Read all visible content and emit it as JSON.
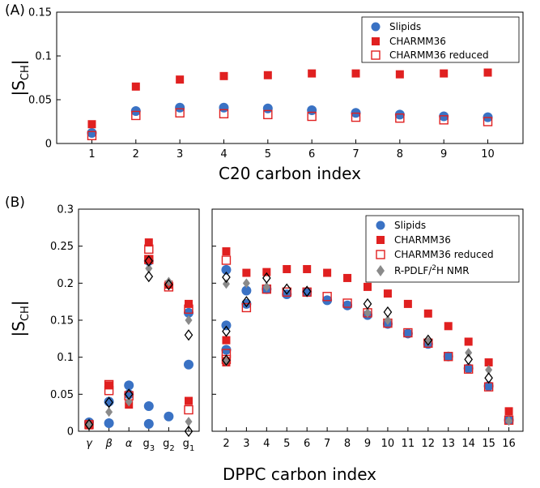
{
  "colors": {
    "slipids": "#3a72c4",
    "charmm": "#e02020",
    "nmr_gray": "#8a8a8a",
    "nmr_open": "#000000"
  },
  "chart_data": [
    {
      "panel": "(A)",
      "type": "scatter",
      "xlabel": "C20 carbon index",
      "ylabel": "|S",
      "ylabel_sub": "CH",
      "ylabel_end": "|",
      "xlim": [
        0.2,
        10.8
      ],
      "ylim": [
        0,
        0.15
      ],
      "xticks": [
        "1",
        "2",
        "3",
        "4",
        "5",
        "6",
        "7",
        "8",
        "9",
        "10"
      ],
      "yticks": [
        "0",
        "0.05",
        "0.1",
        "0.15"
      ],
      "legend_position": "top-right",
      "series": [
        {
          "name": "Slipids",
          "marker": "circle",
          "x": [
            1,
            2,
            3,
            4,
            5,
            6,
            7,
            8,
            9,
            10
          ],
          "y": [
            0.012,
            0.037,
            0.041,
            0.041,
            0.04,
            0.038,
            0.035,
            0.033,
            0.031,
            0.03
          ]
        },
        {
          "name": "CHARMM36",
          "marker": "square",
          "x": [
            1,
            2,
            3,
            4,
            5,
            6,
            7,
            8,
            9,
            10
          ],
          "y": [
            0.022,
            0.065,
            0.073,
            0.077,
            0.078,
            0.08,
            0.08,
            0.079,
            0.08,
            0.081
          ]
        },
        {
          "name": "CHARMM36 reduced",
          "marker": "open-square",
          "x": [
            1,
            2,
            3,
            4,
            5,
            6,
            7,
            8,
            9,
            10
          ],
          "y": [
            0.009,
            0.032,
            0.035,
            0.034,
            0.033,
            0.031,
            0.03,
            0.029,
            0.027,
            0.025
          ]
        }
      ]
    },
    {
      "panel": "(B)",
      "type": "scatter",
      "xlabel": "DPPC carbon index",
      "ylabel": "|S",
      "ylabel_sub": "CH",
      "ylabel_end": "|",
      "ylim": [
        0,
        0.3
      ],
      "yticks": [
        "0",
        "0.05",
        "0.1",
        "0.15",
        "0.2",
        "0.25",
        "0.3"
      ],
      "headgroup_ticks": [
        {
          "label": "γ",
          "sub": ""
        },
        {
          "label": "β",
          "sub": ""
        },
        {
          "label": "α",
          "sub": ""
        },
        {
          "label": "g",
          "sub": "3"
        },
        {
          "label": "g",
          "sub": "2"
        },
        {
          "label": "g",
          "sub": "1"
        }
      ],
      "tail_xlim": [
        1.3,
        16.7
      ],
      "tail_xticks": [
        "2",
        "3",
        "4",
        "5",
        "6",
        "7",
        "8",
        "9",
        "10",
        "11",
        "12",
        "13",
        "14",
        "15",
        "16"
      ],
      "legend_position": "top-right",
      "legend_last_label": {
        "a": "R-PDLF/",
        "sup": "2",
        "b": "H NMR"
      },
      "legend": [
        "Slipids",
        "CHARMM36",
        "CHARMM36 reduced"
      ],
      "headgroup_series": [
        {
          "name": "Slipids",
          "marker": "circle",
          "x": [
            1,
            2,
            2,
            3,
            3,
            4,
            4,
            4,
            5,
            6,
            6
          ],
          "y": [
            0.012,
            0.011,
            0.04,
            0.05,
            0.062,
            0.01,
            0.034,
            0.23,
            0.02,
            0.09,
            0.16
          ]
        },
        {
          "name": "CHARMM36",
          "marker": "square",
          "x": [
            1,
            2,
            3,
            4,
            4,
            5,
            6,
            6
          ],
          "y": [
            0.008,
            0.062,
            0.036,
            0.232,
            0.255,
            0.198,
            0.041,
            0.172
          ]
        },
        {
          "name": "CHARMM36 reduced",
          "marker": "open-square",
          "x": [
            1,
            2,
            2,
            3,
            4,
            4,
            5,
            6,
            6
          ],
          "y": [
            0.009,
            0.055,
            0.063,
            0.048,
            0.232,
            0.246,
            0.195,
            0.029,
            0.165
          ]
        },
        {
          "name": "NMR gray",
          "marker": "gray-diamond",
          "x": [
            1,
            2,
            3,
            4,
            5,
            6,
            6
          ],
          "y": [
            0.01,
            0.026,
            0.04,
            0.22,
            0.202,
            0.013,
            0.15
          ]
        },
        {
          "name": "NMR open",
          "marker": "open-diamond",
          "x": [
            1,
            2,
            3,
            4,
            4,
            5,
            6,
            6
          ],
          "y": [
            0.009,
            0.039,
            0.05,
            0.209,
            0.23,
            0.198,
            0.0,
            0.13
          ]
        }
      ],
      "tail_series": [
        {
          "name": "Slipids",
          "marker": "circle",
          "x": [
            2,
            2,
            2,
            3,
            3,
            4,
            5,
            6,
            7,
            8,
            9,
            10,
            11,
            12,
            13,
            14,
            15,
            16
          ],
          "y": [
            0.218,
            0.143,
            0.11,
            0.172,
            0.19,
            0.192,
            0.185,
            0.188,
            0.177,
            0.17,
            0.157,
            0.145,
            0.132,
            0.118,
            0.101,
            0.085,
            0.061,
            0.015
          ]
        },
        {
          "name": "CHARMM36",
          "marker": "square",
          "x": [
            2,
            2,
            2,
            3,
            4,
            5,
            6,
            7,
            8,
            9,
            10,
            11,
            12,
            13,
            14,
            15,
            16
          ],
          "y": [
            0.243,
            0.123,
            0.093,
            0.214,
            0.215,
            0.219,
            0.219,
            0.214,
            0.207,
            0.195,
            0.186,
            0.172,
            0.159,
            0.142,
            0.121,
            0.093,
            0.027
          ],
          "note": ""
        },
        {
          "name": "CHARMM36 reduced",
          "marker": "open-square",
          "x": [
            2,
            2,
            2,
            3,
            4,
            5,
            6,
            7,
            8,
            9,
            10,
            11,
            12,
            13,
            14,
            15,
            16
          ],
          "y": [
            0.231,
            0.105,
            0.097,
            0.167,
            0.192,
            0.188,
            0.188,
            0.182,
            0.173,
            0.16,
            0.146,
            0.133,
            0.119,
            0.101,
            0.084,
            0.06,
            0.015
          ]
        },
        {
          "name": "R-PDLF NMR gray",
          "marker": "gray-diamond",
          "x": [
            2,
            2,
            3,
            4,
            9,
            10,
            12,
            14,
            15,
            16
          ],
          "y": [
            0.199,
            0.094,
            0.2,
            0.195,
            0.16,
            0.15,
            0.121,
            0.106,
            0.083,
            0.014
          ]
        },
        {
          "name": "NMR open",
          "marker": "open-diamond",
          "x": [
            2,
            2,
            2,
            3,
            4,
            5,
            6,
            9,
            10,
            12,
            14,
            15
          ],
          "y": [
            0.208,
            0.135,
            0.096,
            0.175,
            0.207,
            0.192,
            0.189,
            0.172,
            0.161,
            0.123,
            0.097,
            0.072
          ]
        }
      ]
    }
  ]
}
